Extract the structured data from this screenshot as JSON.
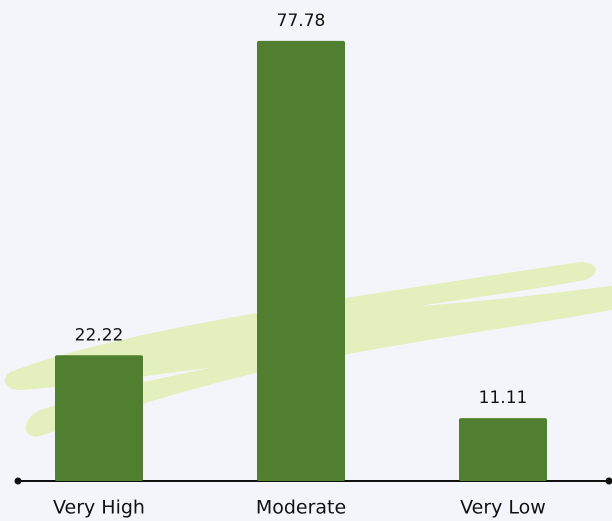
{
  "chart_data": {
    "type": "bar",
    "categories": [
      "Very High",
      "Moderate",
      "Very Low"
    ],
    "values": [
      22.22,
      77.78,
      11.11
    ],
    "color": "#507f30",
    "ylim": [
      0,
      85
    ]
  }
}
